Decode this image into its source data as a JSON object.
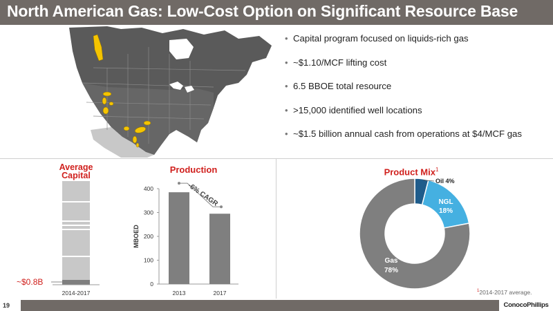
{
  "slide": {
    "title": "North American Gas: Low-Cost Option on Significant Resource Base",
    "page_number": "19",
    "logo_text": "ConocoPhillips",
    "footnote_marker": "1",
    "footnote_text": "2014-2017 average."
  },
  "bullets": [
    "Capital program focused on liquids-rich gas",
    "~$1.10/MCF lifting cost",
    "6.5 BBOE total resource",
    ">15,000 identified well locations",
    "~$1.5 billion annual cash from operations at $4/MCF gas"
  ],
  "colors": {
    "title_bar": "#706a66",
    "accent_red": "#d0201d",
    "bar_gray": "#7f7f7f",
    "light_gray": "#c8c8c8",
    "oil_blue": "#1f5c8b",
    "ngl_blue": "#45b0e1",
    "map_land": "#595959",
    "map_us": "#cfcfcf",
    "resource_yellow": "#f5c400"
  },
  "map": {
    "icon": "north-america-map",
    "highlight_color": "#f5c400"
  },
  "chart_data": [
    {
      "type": "bar",
      "title": "Average Capital",
      "categories": [
        "2014-2017"
      ],
      "annotation": "~$0.8B",
      "segments_note": "stacked gray bar with highlighted bottom segment"
    },
    {
      "type": "bar",
      "title": "Production",
      "categories": [
        "2013",
        "2017"
      ],
      "values": [
        385,
        295
      ],
      "ylabel": "MBOED",
      "ylim": [
        0,
        400
      ],
      "yticks": [
        0,
        100,
        200,
        300,
        400
      ],
      "annotation": "-6% CAGR"
    },
    {
      "type": "pie",
      "title": "Product Mix",
      "title_superscript": "1",
      "slices": [
        {
          "label": "Oil",
          "value": 4,
          "display": "4%",
          "color": "#1f5c8b"
        },
        {
          "label": "NGL",
          "value": 18,
          "display": "18%",
          "color": "#45b0e1"
        },
        {
          "label": "Gas",
          "value": 78,
          "display": "78%",
          "color": "#7f7f7f"
        }
      ]
    }
  ]
}
